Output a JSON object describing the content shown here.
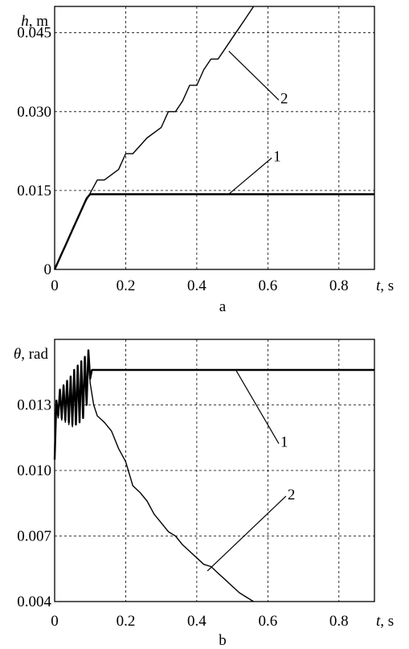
{
  "chart_data": [
    {
      "type": "line",
      "panel_label": "a",
      "ylabel": "h",
      "yunit": ", m",
      "xlabel": "t",
      "xunit": ", s",
      "xlim": [
        0,
        0.9
      ],
      "ylim": [
        0,
        0.05
      ],
      "x_ticks": [
        0,
        0.2,
        0.4,
        0.6,
        0.8
      ],
      "x_tick_labels": [
        "0",
        "0.2",
        "0.4",
        "0.6",
        "0.8"
      ],
      "y_ticks": [
        0,
        0.015,
        0.03,
        0.045
      ],
      "y_tick_labels": [
        "0",
        "0.015",
        "0.030",
        "0.045"
      ],
      "grid": true,
      "series": [
        {
          "name": "1",
          "x": [
            0,
            0.01,
            0.02,
            0.03,
            0.04,
            0.05,
            0.06,
            0.07,
            0.08,
            0.09,
            0.1,
            0.11,
            0.2,
            0.4,
            0.6,
            0.8,
            0.9
          ],
          "y": [
            0,
            0.0015,
            0.003,
            0.0045,
            0.006,
            0.0075,
            0.009,
            0.0105,
            0.012,
            0.0135,
            0.0143,
            0.0143,
            0.0143,
            0.0143,
            0.0143,
            0.0143,
            0.0143
          ]
        },
        {
          "name": "2",
          "x": [
            0,
            0.02,
            0.04,
            0.06,
            0.08,
            0.1,
            0.12,
            0.14,
            0.18,
            0.2,
            0.22,
            0.26,
            0.3,
            0.32,
            0.34,
            0.36,
            0.38,
            0.4,
            0.42,
            0.44,
            0.46,
            0.48,
            0.5,
            0.52,
            0.54,
            0.56
          ],
          "y": [
            0,
            0.003,
            0.006,
            0.009,
            0.012,
            0.0145,
            0.017,
            0.017,
            0.019,
            0.022,
            0.022,
            0.025,
            0.027,
            0.03,
            0.03,
            0.032,
            0.035,
            0.035,
            0.038,
            0.04,
            0.04,
            0.042,
            0.044,
            0.046,
            0.048,
            0.05
          ]
        }
      ],
      "annotations": [
        {
          "label": "1",
          "point": [
            0.49,
            0.0143
          ],
          "text_at": [
            0.62,
            0.0215
          ]
        },
        {
          "label": "2",
          "point": [
            0.49,
            0.0415
          ],
          "text_at": [
            0.64,
            0.0325
          ]
        }
      ]
    },
    {
      "type": "line",
      "panel_label": "b",
      "ylabel": "θ",
      "yunit": ", rad",
      "xlabel": "t",
      "xunit": ", s",
      "xlim": [
        0,
        0.9
      ],
      "ylim": [
        0.004,
        0.016
      ],
      "x_ticks": [
        0,
        0.2,
        0.4,
        0.6,
        0.8
      ],
      "x_tick_labels": [
        "0",
        "0.2",
        "0.4",
        "0.6",
        "0.8"
      ],
      "y_ticks": [
        0.004,
        0.007,
        0.01,
        0.013
      ],
      "y_tick_labels": [
        "0.004",
        "0.007",
        "0.010",
        "0.013"
      ],
      "grid": true,
      "series": [
        {
          "name": "1",
          "x": [
            0,
            0.005,
            0.01,
            0.015,
            0.02,
            0.025,
            0.03,
            0.035,
            0.04,
            0.045,
            0.05,
            0.055,
            0.06,
            0.065,
            0.07,
            0.075,
            0.08,
            0.085,
            0.09,
            0.095,
            0.1,
            0.105,
            0.11,
            0.2,
            0.4,
            0.6,
            0.8,
            0.9
          ],
          "y": [
            0.0105,
            0.0132,
            0.0125,
            0.0137,
            0.0124,
            0.0139,
            0.0123,
            0.0141,
            0.0122,
            0.0143,
            0.0121,
            0.0146,
            0.0121,
            0.0148,
            0.0122,
            0.015,
            0.0124,
            0.0152,
            0.013,
            0.0155,
            0.0142,
            0.0146,
            0.0146,
            0.0146,
            0.0146,
            0.0146,
            0.0146,
            0.0146
          ]
        },
        {
          "name": "2",
          "x": [
            0,
            0.005,
            0.01,
            0.015,
            0.02,
            0.025,
            0.03,
            0.035,
            0.04,
            0.045,
            0.05,
            0.055,
            0.06,
            0.065,
            0.07,
            0.075,
            0.08,
            0.085,
            0.09,
            0.095,
            0.1,
            0.11,
            0.12,
            0.14,
            0.16,
            0.18,
            0.2,
            0.22,
            0.24,
            0.26,
            0.28,
            0.3,
            0.32,
            0.34,
            0.36,
            0.38,
            0.4,
            0.42,
            0.44,
            0.46,
            0.48,
            0.5,
            0.52,
            0.54,
            0.56
          ],
          "y": [
            0.0105,
            0.0131,
            0.0124,
            0.0136,
            0.0123,
            0.0138,
            0.0122,
            0.014,
            0.0121,
            0.0142,
            0.012,
            0.0144,
            0.0121,
            0.0146,
            0.0122,
            0.0149,
            0.0124,
            0.0151,
            0.013,
            0.0154,
            0.014,
            0.013,
            0.0125,
            0.0122,
            0.0118,
            0.011,
            0.0104,
            0.0093,
            0.009,
            0.0086,
            0.008,
            0.0076,
            0.0072,
            0.007,
            0.0066,
            0.0063,
            0.006,
            0.0057,
            0.0056,
            0.0053,
            0.005,
            0.0047,
            0.0044,
            0.0042,
            0.004
          ]
        }
      ],
      "annotations": [
        {
          "label": "1",
          "point": [
            0.51,
            0.0146
          ],
          "text_at": [
            0.64,
            0.0113
          ]
        },
        {
          "label": "2",
          "point": [
            0.43,
            0.0054
          ],
          "text_at": [
            0.66,
            0.0089
          ]
        }
      ]
    }
  ]
}
